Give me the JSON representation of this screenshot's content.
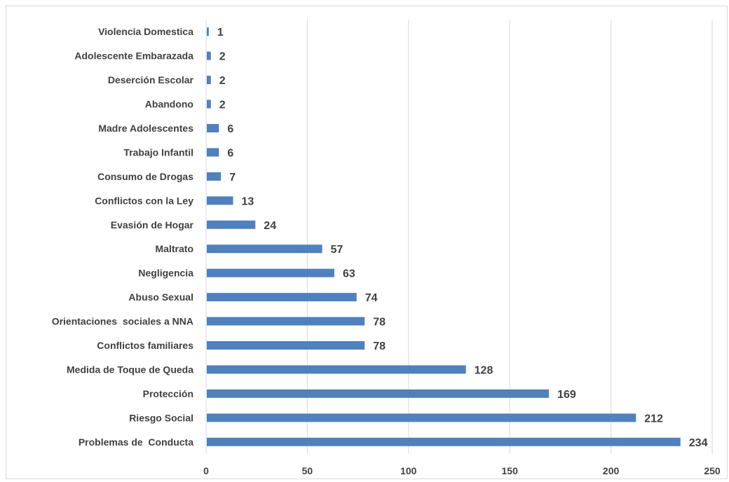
{
  "chart_data": {
    "type": "bar",
    "orientation": "horizontal",
    "title": "",
    "xlabel": "",
    "ylabel": "",
    "xlim": [
      0,
      250
    ],
    "xticks": [
      0,
      50,
      100,
      150,
      200,
      250
    ],
    "grid": "vertical",
    "legend": "none",
    "bar_color": "#4f81bd",
    "categories": [
      "Violencia Domestica",
      "Adolescente Embarazada",
      "Deserción Escolar",
      "Abandono",
      "Madre Adolescentes",
      "Trabajo Infantil",
      "Consumo de Drogas",
      "Conflictos con la Ley",
      "Evasión de Hogar",
      "Maltrato",
      "Negligencia",
      "Abuso Sexual",
      "Orientaciones  sociales a NNA",
      "Conflictos familiares",
      "Medida de Toque de Queda",
      "Protección",
      "Riesgo Social",
      "Problemas de  Conducta"
    ],
    "values": [
      1,
      2,
      2,
      2,
      6,
      6,
      7,
      13,
      24,
      57,
      63,
      74,
      78,
      78,
      128,
      169,
      212,
      234
    ]
  }
}
